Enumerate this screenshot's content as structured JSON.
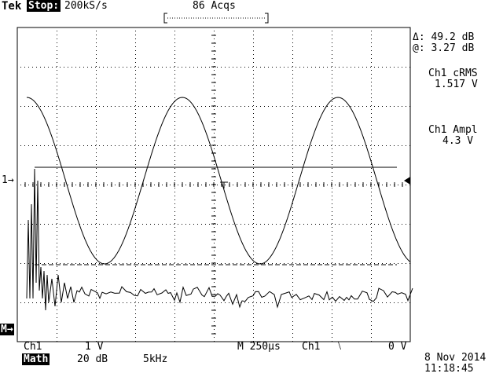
{
  "header": {
    "brand": "Tek",
    "run_state": "Stop:",
    "sample_rate": "200kS/s",
    "acquisitions": "86 Acqs"
  },
  "measurements": {
    "delta": "Δ: 49.2 dB",
    "at": "@: 3.27 dB",
    "m1_label": "Ch1 cRMS",
    "m1_value": "1.517 V",
    "m2_label": "Ch1 Ampl",
    "m2_value": "4.3 V"
  },
  "markers": {
    "ch1_marker": "1→",
    "math_marker": "M→"
  },
  "footer": {
    "ch1_label": "Ch1",
    "ch1_scale": "1 V",
    "math_label": "Math",
    "math_scale": "20 dB",
    "math_freq": "5kHz",
    "timebase": "M 250µs",
    "trig_source": "Ch1",
    "trig_slope": "⧵",
    "trig_level": "0 V",
    "date": "8 Nov 2014",
    "time": "11:18:45"
  },
  "colors": {
    "trace": "#000000",
    "background": "#ffffff",
    "graticule": "#000000"
  }
}
